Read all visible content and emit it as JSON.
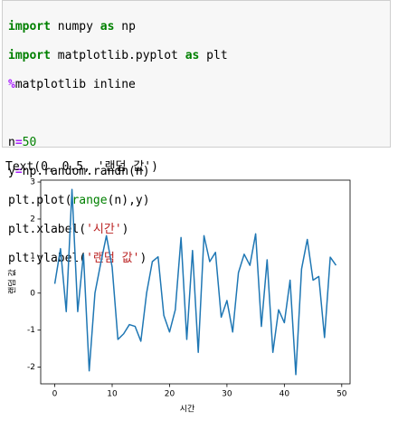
{
  "code_cell": {
    "lines": [
      [
        "import",
        " numpy ",
        "as",
        " np"
      ],
      [
        "import",
        " matplotlib.pyplot ",
        "as",
        " plt"
      ],
      [
        "%",
        "matplotlib inline"
      ],
      [
        "n",
        "=",
        "50"
      ],
      [
        "y",
        "=",
        "np.random.randn(n)"
      ],
      [
        "plt.plot(",
        "range",
        "(n),y)"
      ],
      [
        "plt.xlabel(",
        "'시간'",
        ")"
      ],
      [
        "plt.ylabel(",
        "'랜덤 값'",
        ")"
      ]
    ]
  },
  "output_text": "Text(0, 0.5, '랜덤 값')",
  "chart_data": {
    "type": "line",
    "xlabel": "시간",
    "ylabel": "랜덤 값",
    "x": [
      0,
      1,
      2,
      3,
      4,
      5,
      6,
      7,
      8,
      9,
      10,
      11,
      12,
      13,
      14,
      15,
      16,
      17,
      18,
      19,
      20,
      21,
      22,
      23,
      24,
      25,
      26,
      27,
      28,
      29,
      30,
      31,
      32,
      33,
      34,
      35,
      36,
      37,
      38,
      39,
      40,
      41,
      42,
      43,
      44,
      45,
      46,
      47,
      48,
      49
    ],
    "series": [
      {
        "color": "#1f77b4",
        "values": [
          0.25,
          1.2,
          -0.5,
          2.8,
          -0.5,
          1.05,
          -2.1,
          0.0,
          0.8,
          1.55,
          0.7,
          -1.25,
          -1.1,
          -0.85,
          -0.9,
          -1.3,
          0.0,
          0.85,
          0.98,
          -0.6,
          -1.05,
          -0.45,
          1.5,
          -1.25,
          1.15,
          -1.6,
          1.55,
          0.85,
          1.1,
          -0.65,
          -0.2,
          -1.05,
          0.55,
          1.05,
          0.75,
          1.6,
          -0.9,
          0.9,
          -1.6,
          -0.45,
          -0.8,
          0.35,
          -2.2,
          0.65,
          1.45,
          0.35,
          0.45,
          -1.2,
          0.97,
          0.75
        ]
      }
    ],
    "xlim": [
      -2.45,
      51.45
    ],
    "ylim": [
      -2.45,
      3.05
    ],
    "xticks": [
      0,
      10,
      20,
      30,
      40,
      50
    ],
    "yticks": [
      -2,
      -1,
      0,
      1,
      2,
      3
    ]
  }
}
